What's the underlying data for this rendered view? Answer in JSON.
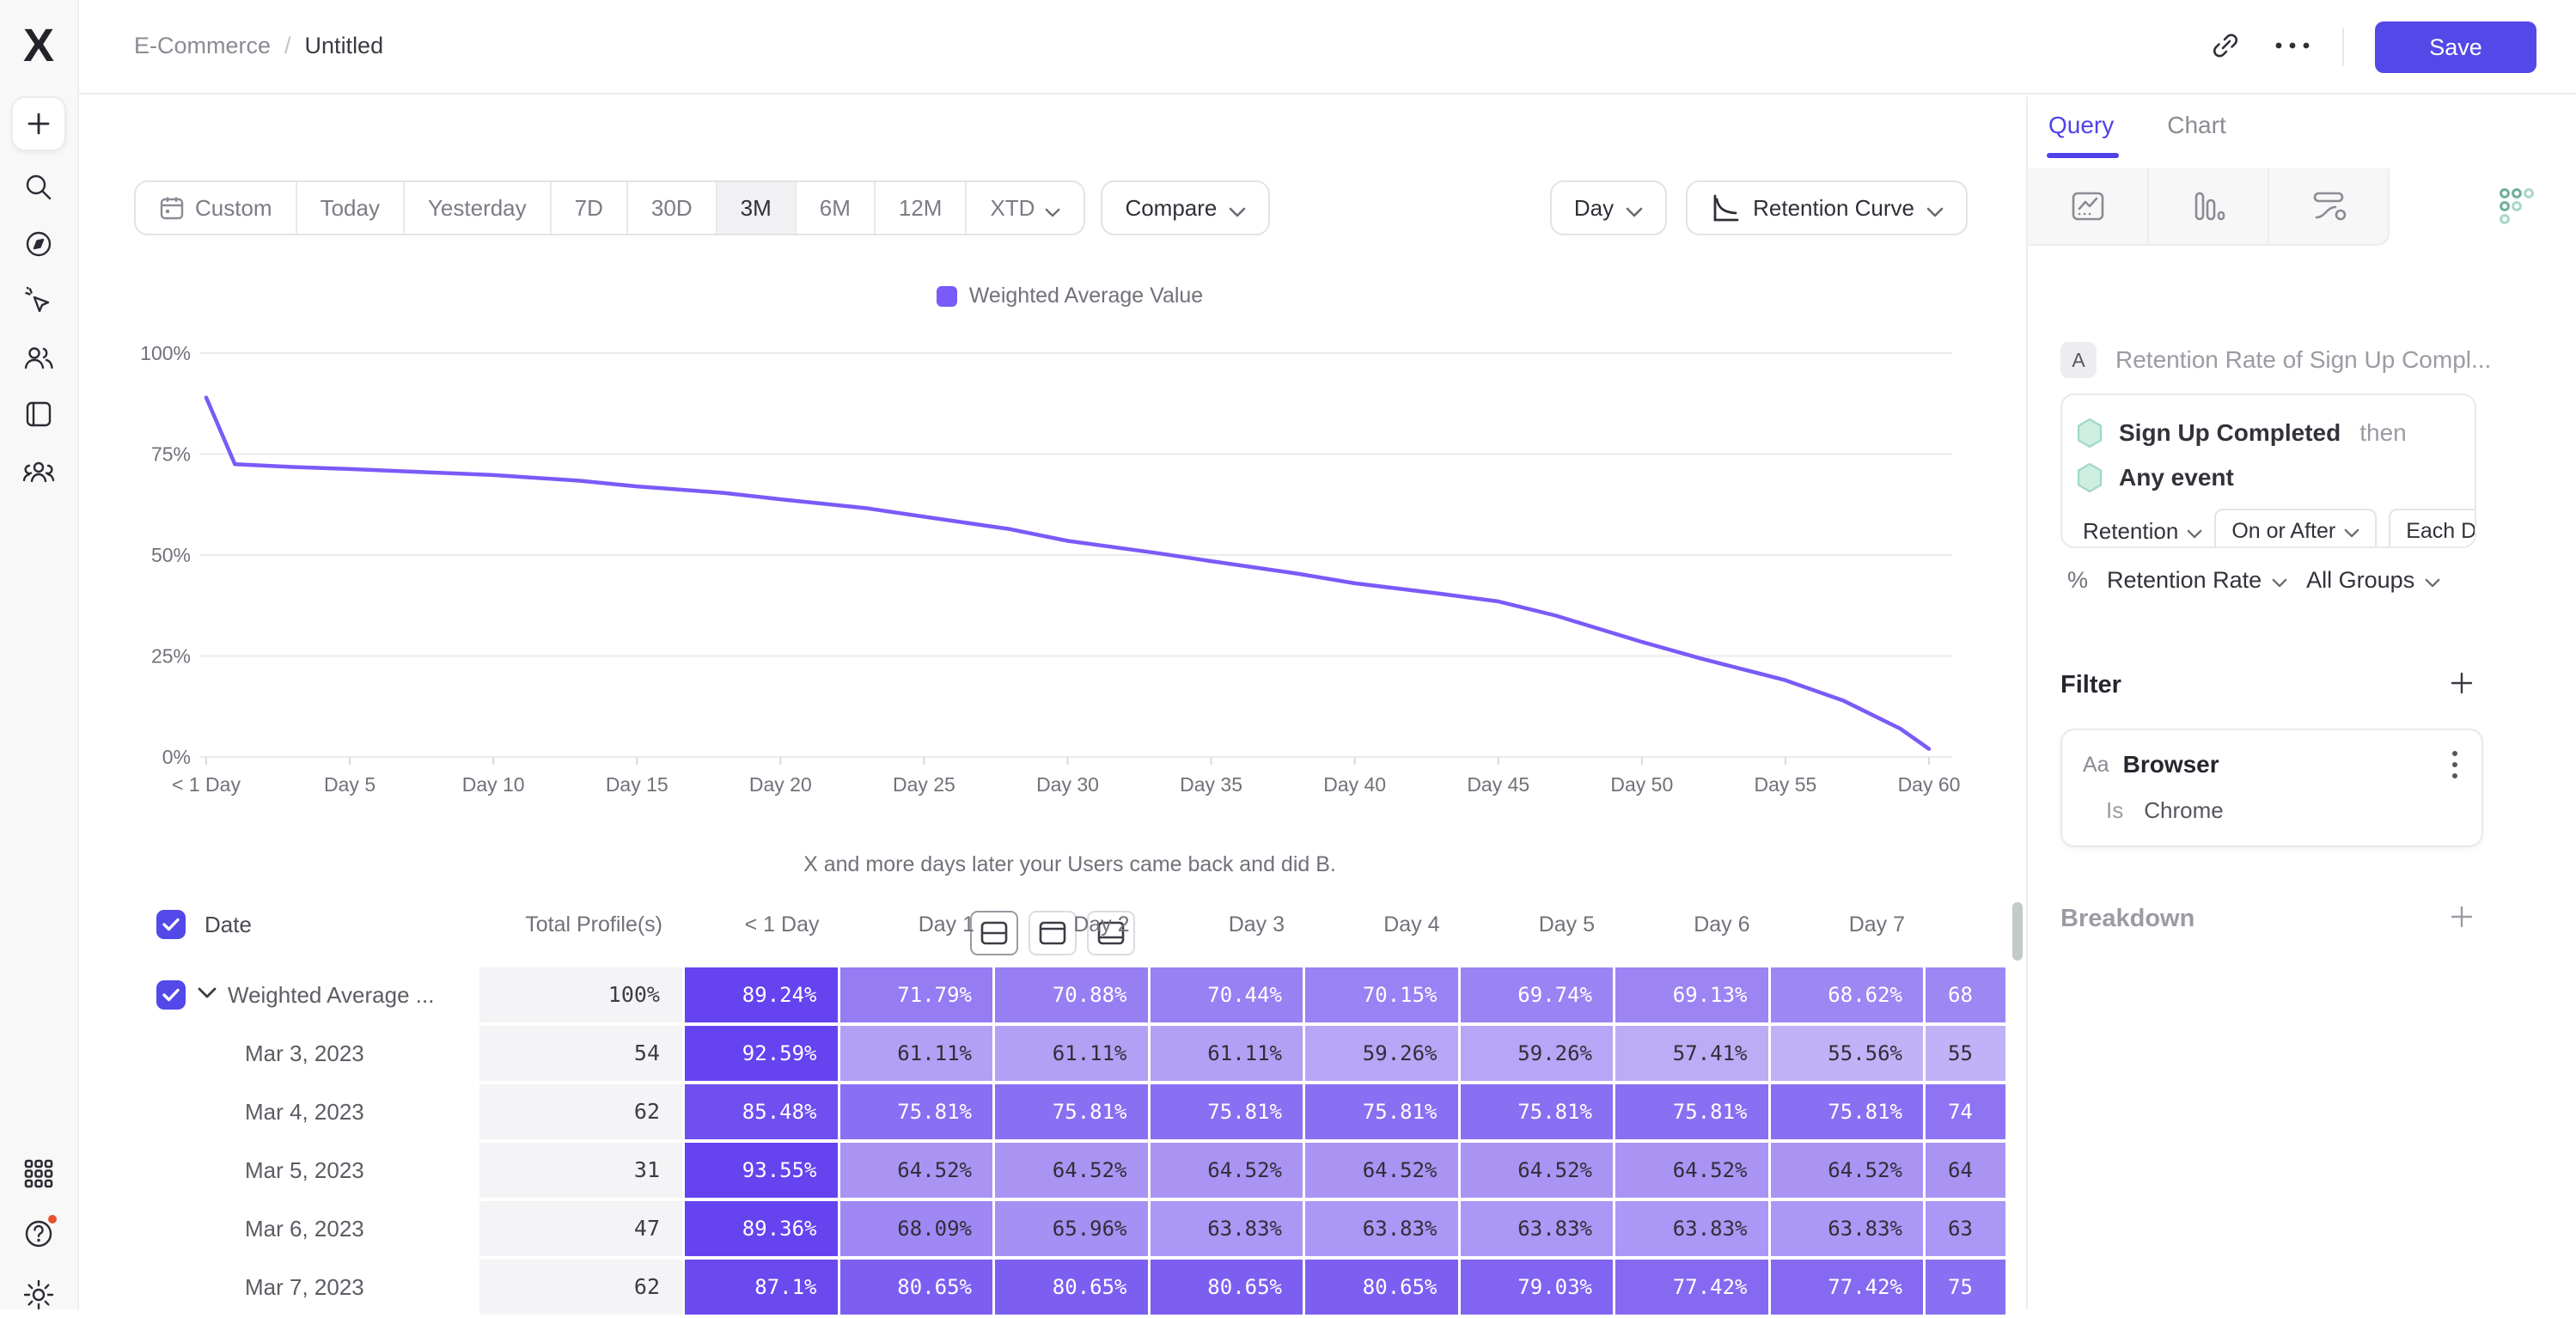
{
  "app": {
    "logo_letter": "X"
  },
  "header": {
    "breadcrumb": {
      "root": "E-Commerce",
      "separator": "/",
      "current": "Untitled"
    },
    "save_label": "Save",
    "icons": [
      "share-link-icon",
      "more-ellipsis-icon"
    ]
  },
  "sidebar": {
    "icons": [
      "plus",
      "search",
      "compass",
      "magic-cursor",
      "users",
      "boards",
      "cohorts",
      "apps-grid",
      "help",
      "settings"
    ]
  },
  "toolbar": {
    "date_ranges": [
      {
        "label": "Custom",
        "icon": "calendar",
        "selected": false
      },
      {
        "label": "Today",
        "selected": false
      },
      {
        "label": "Yesterday",
        "selected": false
      },
      {
        "label": "7D",
        "selected": false
      },
      {
        "label": "30D",
        "selected": false
      },
      {
        "label": "3M",
        "selected": true
      },
      {
        "label": "6M",
        "selected": false
      },
      {
        "label": "12M",
        "selected": false
      },
      {
        "label": "XTD",
        "chevron": true,
        "selected": false
      }
    ],
    "compare_label": "Compare",
    "granularity_label": "Day",
    "chart_type_label": "Retention Curve"
  },
  "chart_data": {
    "type": "line",
    "legend": [
      "Weighted Average Value"
    ],
    "line_color": "#7a5af8",
    "grid_color": "#ebebee",
    "xlabel": "X and more days later your Users came back and did B.",
    "x_ticks": [
      "< 1 Day",
      "Day 5",
      "Day 10",
      "Day 15",
      "Day 20",
      "Day 25",
      "Day 30",
      "Day 35",
      "Day 40",
      "Day 45",
      "Day 50",
      "Day 55",
      "Day 60"
    ],
    "x_tick_days": [
      0,
      5,
      10,
      15,
      20,
      25,
      30,
      35,
      40,
      45,
      50,
      55,
      60
    ],
    "y_ticks": [
      {
        "label": "100%",
        "value": 100
      },
      {
        "label": "75%",
        "value": 75
      },
      {
        "label": "50%",
        "value": 50
      },
      {
        "label": "25%",
        "value": 25
      },
      {
        "label": "0%",
        "value": 0
      }
    ],
    "xlim": [
      0,
      60
    ],
    "ylim": [
      0,
      100
    ],
    "series": [
      {
        "name": "Weighted Average Value",
        "points": [
          [
            0,
            89
          ],
          [
            1,
            72.5
          ],
          [
            3,
            71.8
          ],
          [
            5,
            71.3
          ],
          [
            8,
            70.4
          ],
          [
            10,
            69.8
          ],
          [
            13,
            68.4
          ],
          [
            15,
            67.0
          ],
          [
            18,
            65.4
          ],
          [
            20,
            63.8
          ],
          [
            23,
            61.6
          ],
          [
            25,
            59.5
          ],
          [
            28,
            56.4
          ],
          [
            30,
            53.5
          ],
          [
            33,
            50.6
          ],
          [
            35,
            48.5
          ],
          [
            38,
            45.4
          ],
          [
            40,
            43.0
          ],
          [
            43,
            40.4
          ],
          [
            45,
            38.5
          ],
          [
            47,
            35.0
          ],
          [
            50,
            28.5
          ],
          [
            52,
            24.5
          ],
          [
            55,
            19.0
          ],
          [
            57,
            14.0
          ],
          [
            59,
            7.0
          ],
          [
            60,
            2.0
          ]
        ]
      }
    ]
  },
  "view_toggle": {
    "options": [
      "layout-split-icon",
      "layout-top-icon",
      "layout-bottom-icon"
    ],
    "selected": 0
  },
  "table": {
    "columns": [
      "Date",
      "Total Profile(s)",
      "< 1 Day",
      "Day 1",
      "Day 2",
      "Day 3",
      "Day 4",
      "Day 5",
      "Day 6",
      "Day 7",
      ""
    ],
    "rows": [
      {
        "label": "Weighted Average ...",
        "has_checkbox": true,
        "has_chevron": true,
        "total": "100%",
        "cells": [
          "89.24%",
          "71.79%",
          "70.88%",
          "70.44%",
          "70.15%",
          "69.74%",
          "69.13%",
          "68.62%"
        ],
        "partial": {
          "label": "68",
          "value": 68.62
        }
      },
      {
        "label": "Mar 3, 2023",
        "total": "54",
        "cells": [
          "92.59%",
          "61.11%",
          "61.11%",
          "61.11%",
          "59.26%",
          "59.26%",
          "57.41%",
          "55.56%"
        ],
        "partial": {
          "label": "55",
          "value": 55.56
        }
      },
      {
        "label": "Mar 4, 2023",
        "total": "62",
        "cells": [
          "85.48%",
          "75.81%",
          "75.81%",
          "75.81%",
          "75.81%",
          "75.81%",
          "75.81%",
          "75.81%"
        ],
        "partial": {
          "label": "74",
          "value": 74.19
        }
      },
      {
        "label": "Mar 5, 2023",
        "total": "31",
        "cells": [
          "93.55%",
          "64.52%",
          "64.52%",
          "64.52%",
          "64.52%",
          "64.52%",
          "64.52%",
          "64.52%"
        ],
        "partial": {
          "label": "64",
          "value": 64.52
        }
      },
      {
        "label": "Mar 6, 2023",
        "total": "47",
        "cells": [
          "89.36%",
          "68.09%",
          "65.96%",
          "63.83%",
          "63.83%",
          "63.83%",
          "63.83%",
          "63.83%"
        ],
        "partial": {
          "label": "63",
          "value": 63.83
        }
      },
      {
        "label": "Mar 7, 2023",
        "total": "62",
        "cells": [
          "87.1%",
          "80.65%",
          "80.65%",
          "80.65%",
          "80.65%",
          "79.03%",
          "77.42%",
          "77.42%"
        ],
        "partial": {
          "label": "75",
          "value": 75.81
        }
      }
    ]
  },
  "panel": {
    "tabs": [
      {
        "label": "Query",
        "active": true
      },
      {
        "label": "Chart",
        "active": false
      }
    ],
    "report_icons": [
      "insights-icon",
      "funnels-icon",
      "flows-icon",
      "retention-icon"
    ],
    "query": {
      "badge": "A",
      "name_placeholder": "Retention Rate of Sign Up Compl...",
      "steps": [
        {
          "label": "Sign Up Completed",
          "suffix": "then"
        },
        {
          "label": "Any event",
          "suffix": ""
        }
      ],
      "controls": {
        "retention": "Retention",
        "on_or_after": "On or After",
        "each_day": "Each Day"
      },
      "metric": {
        "symbol": "%",
        "label": "Retention Rate",
        "groups": "All Groups"
      }
    },
    "filter": {
      "title": "Filter",
      "item": {
        "type_badge": "Aa",
        "name": "Browser",
        "operator": "Is",
        "value": "Chrome"
      }
    },
    "breakdown": {
      "title": "Breakdown"
    }
  }
}
